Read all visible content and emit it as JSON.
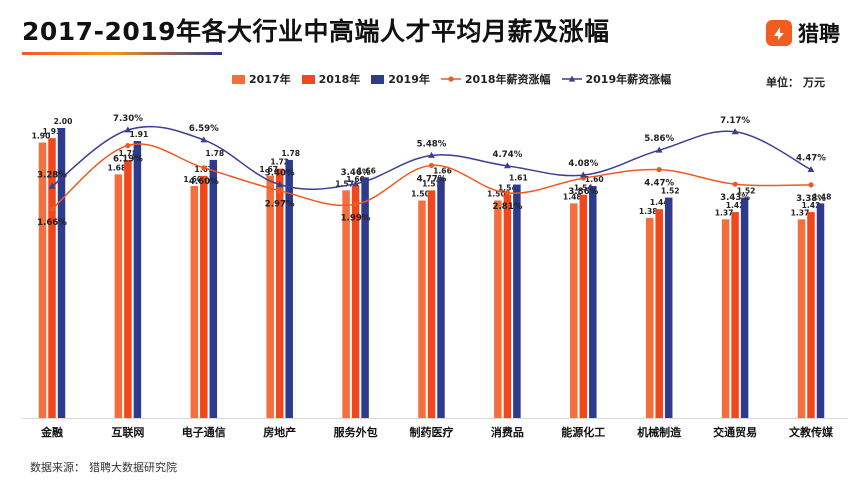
{
  "header": {
    "title": "2017-2019年各大行业中高端人才平均月薪及涨幅",
    "logo_text": "猎聘",
    "unit_label": "单位：",
    "unit_value": "万元"
  },
  "legend": [
    {
      "label": "2017年",
      "color": "#f36f3b",
      "kind": "bar"
    },
    {
      "label": "2018年",
      "color": "#f2461b",
      "kind": "bar"
    },
    {
      "label": "2019年",
      "color": "#2e3a8c",
      "kind": "bar"
    },
    {
      "label": "2018年薪资涨幅",
      "color": "#f05a22",
      "kind": "line-dot"
    },
    {
      "label": "2019年薪资涨幅",
      "color": "#3a3f93",
      "kind": "line-triangle"
    }
  ],
  "footer": {
    "source_label": "数据来源：",
    "source_value": "猎聘大数据研究院"
  },
  "chart_data": {
    "type": "bar",
    "categories": [
      "金融",
      "互联网",
      "电子通信",
      "房地产",
      "服务外包",
      "制药医疗",
      "消费品",
      "能源化工",
      "机械制造",
      "交通贸易",
      "文教传媒"
    ],
    "series": [
      {
        "name": "2017年",
        "color": "#f36f3b",
        "values": [
          1.9,
          1.68,
          1.6,
          1.67,
          1.57,
          1.5,
          1.5,
          1.48,
          1.38,
          1.37,
          1.37
        ]
      },
      {
        "name": "2018年",
        "color": "#f2461b",
        "values": [
          1.93,
          1.78,
          1.67,
          1.72,
          1.6,
          1.57,
          1.54,
          1.54,
          1.44,
          1.42,
          1.42
        ]
      },
      {
        "name": "2019年",
        "color": "#2e3a8c",
        "values": [
          2.0,
          1.91,
          1.78,
          1.78,
          1.66,
          1.66,
          1.61,
          1.6,
          1.52,
          1.52,
          1.48
        ]
      }
    ],
    "bar_labels": [
      [
        "1.90",
        "1.68",
        "1.60",
        "1.67",
        "1.57",
        "1.50",
        "1.50",
        "1.48",
        "1.38",
        "1.37",
        "1.37"
      ],
      [
        "1.93",
        "1.78",
        "1.67",
        "1.72",
        "1.60",
        "1.57",
        "1.54",
        "1.54",
        "1.44",
        "1.42",
        "1.42"
      ],
      [
        "2.00",
        "1.91",
        "1.78",
        "1.78",
        "1.66",
        "1.66",
        "1.61",
        "1.60",
        "1.52",
        "1.52",
        "1.48"
      ]
    ],
    "line_series": [
      {
        "name": "2018年薪资涨幅",
        "color": "#f05a22",
        "marker": "dot",
        "values": [
          1.66,
          6.19,
          4.6,
          2.97,
          1.99,
          4.77,
          2.81,
          3.86,
          4.47,
          3.43,
          3.38
        ],
        "labels": [
          "1.66%",
          "6.19%",
          "4.60%",
          "2.97%",
          "1.99%",
          "4.77%",
          "2.81%",
          "3.86%",
          "4.47%",
          "3.43%",
          "3.38%"
        ]
      },
      {
        "name": "2019年薪资涨幅",
        "color": "#3a3f93",
        "marker": "triangle",
        "values": [
          3.28,
          7.3,
          6.59,
          3.4,
          3.46,
          5.48,
          4.74,
          4.08,
          5.86,
          7.17,
          4.47
        ],
        "labels": [
          "3.28%",
          "7.30%",
          "6.59%",
          "3.40%",
          "3.46%",
          "5.48%",
          "4.74%",
          "4.08%",
          "5.86%",
          "7.17%",
          "4.47%"
        ]
      }
    ],
    "line_label_side": [
      [
        "below",
        "below",
        "below",
        "below",
        "below",
        "below",
        "below",
        "below",
        "below",
        "below",
        "below"
      ],
      [
        "above",
        "above",
        "above",
        "above",
        "above",
        "above",
        "above",
        "above",
        "above",
        "above",
        "above"
      ]
    ],
    "ylabel": "万元",
    "ylim": [
      0,
      2.0
    ],
    "line_ylim": [
      1.66,
      7.3
    ],
    "grid": false,
    "legend_position": "top"
  }
}
